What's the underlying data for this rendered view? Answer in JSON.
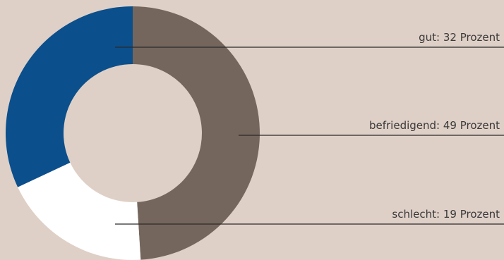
{
  "chart_data": {
    "type": "pie",
    "variant": "donut",
    "title": "",
    "start_angle_deg": 0,
    "direction": "clockwise",
    "background": "#dfd0c7",
    "slices": [
      {
        "label": "befriedigend: 49 Prozent",
        "value": 49,
        "color": "#75665d"
      },
      {
        "label": "schlecht: 19 Prozent",
        "value": 19,
        "color": "#ffffff"
      },
      {
        "label": "gut: 32 Prozent",
        "value": 32,
        "color": "#0b4f8c"
      }
    ]
  }
}
